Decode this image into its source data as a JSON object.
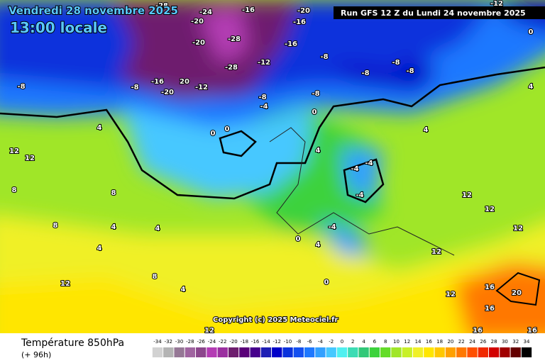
{
  "header": {
    "date": "Vendredi 28 novembre 2025",
    "time": "13:00 locale"
  },
  "run_info": "Run GFS 12 Z du Lundi 24 novembre 2025",
  "copyright": "Copyright (c) 2025 Meteociel.fr",
  "footer": {
    "title": "Température 850hPa",
    "lead": "(+ 96h)"
  },
  "scale": {
    "ticks": [
      -34,
      -32,
      -30,
      -28,
      -26,
      -24,
      -22,
      -20,
      -18,
      -16,
      -14,
      -12,
      -10,
      -8,
      -6,
      -4,
      -2,
      0,
      2,
      4,
      6,
      8,
      10,
      12,
      14,
      16,
      18,
      20,
      22,
      24,
      26,
      28,
      30,
      32,
      34
    ],
    "colors": [
      "#d2d2d2",
      "#b4b4b4",
      "#967896",
      "#a064a0",
      "#8c468c",
      "#b43cb4",
      "#9b2fa0",
      "#6e1e6e",
      "#5a0078",
      "#46008c",
      "#1e1eb4",
      "#0000c8",
      "#0a32dc",
      "#1450f0",
      "#1e78ff",
      "#32a0ff",
      "#46c8ff",
      "#50f0f0",
      "#3cdcb4",
      "#32c878",
      "#3cd23c",
      "#64dc28",
      "#a0e628",
      "#c8f028",
      "#f0f028",
      "#ffe600",
      "#ffc800",
      "#ffa000",
      "#ff7800",
      "#ff5000",
      "#f02800",
      "#d20000",
      "#a00000",
      "#640000",
      "#000000"
    ]
  },
  "map_labels": [
    -28,
    -24,
    -16,
    -20,
    -16,
    -20,
    -28,
    -20,
    -16,
    -12,
    -8,
    -8,
    -8,
    -8,
    -28,
    -16,
    20,
    -20,
    -12,
    -8,
    -8,
    -8,
    -4,
    -8,
    0,
    0,
    0,
    4,
    4,
    12,
    12,
    4,
    -4,
    -4,
    -4,
    8,
    8,
    12,
    12,
    8,
    4,
    4,
    0,
    -4,
    4,
    4,
    12,
    8,
    12,
    4,
    0,
    12,
    16,
    20,
    16,
    12,
    16,
    16,
    -12,
    0,
    4,
    12
  ]
}
